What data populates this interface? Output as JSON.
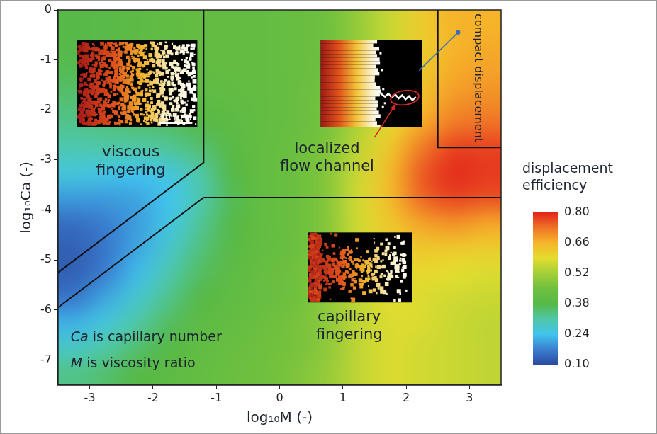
{
  "chart_data": {
    "type": "heatmap",
    "xlabel": "log₁₀M (-)",
    "ylabel": "log₁₀Ca (-)",
    "xlim": [
      -3.5,
      3.5
    ],
    "ylim": [
      -7.5,
      0
    ],
    "xticks": [
      -3,
      -2,
      -1,
      0,
      1,
      2,
      3
    ],
    "yticks": [
      0,
      -1,
      -2,
      -3,
      -4,
      -5,
      -6,
      -7
    ],
    "grid": false,
    "x": [
      -3.25,
      -2.75,
      -2.25,
      -1.75,
      -1.25,
      -0.75,
      -0.25,
      0.25,
      0.75,
      1.25,
      1.75,
      2.25,
      2.75,
      3.25
    ],
    "y": [
      -0.25,
      -0.75,
      -1.25,
      -1.75,
      -2.25,
      -2.75,
      -3.25,
      -3.75,
      -4.25,
      -4.75,
      -5.25,
      -5.75,
      -6.25,
      -6.75,
      -7.25
    ],
    "cells": [
      [
        0.38,
        0.39,
        0.4,
        0.41,
        0.42,
        0.42,
        0.42,
        0.43,
        0.45,
        0.5,
        0.56,
        0.62,
        0.66,
        0.66
      ],
      [
        0.38,
        0.39,
        0.4,
        0.41,
        0.42,
        0.42,
        0.42,
        0.43,
        0.45,
        0.5,
        0.56,
        0.62,
        0.66,
        0.67
      ],
      [
        0.37,
        0.38,
        0.39,
        0.4,
        0.41,
        0.42,
        0.42,
        0.43,
        0.45,
        0.51,
        0.57,
        0.63,
        0.67,
        0.68
      ],
      [
        0.35,
        0.36,
        0.37,
        0.38,
        0.4,
        0.41,
        0.42,
        0.43,
        0.46,
        0.52,
        0.58,
        0.64,
        0.69,
        0.7
      ],
      [
        0.33,
        0.34,
        0.35,
        0.36,
        0.38,
        0.4,
        0.42,
        0.43,
        0.46,
        0.53,
        0.6,
        0.67,
        0.72,
        0.73
      ],
      [
        0.3,
        0.31,
        0.31,
        0.32,
        0.35,
        0.39,
        0.42,
        0.44,
        0.47,
        0.55,
        0.63,
        0.72,
        0.77,
        0.77
      ],
      [
        0.26,
        0.25,
        0.24,
        0.26,
        0.31,
        0.38,
        0.42,
        0.44,
        0.48,
        0.56,
        0.65,
        0.75,
        0.79,
        0.78
      ],
      [
        0.2,
        0.2,
        0.21,
        0.24,
        0.3,
        0.37,
        0.42,
        0.44,
        0.48,
        0.57,
        0.65,
        0.74,
        0.77,
        0.76
      ],
      [
        0.15,
        0.17,
        0.2,
        0.25,
        0.32,
        0.38,
        0.42,
        0.44,
        0.48,
        0.57,
        0.63,
        0.68,
        0.7,
        0.68
      ],
      [
        0.13,
        0.16,
        0.21,
        0.27,
        0.34,
        0.39,
        0.42,
        0.44,
        0.48,
        0.56,
        0.61,
        0.63,
        0.63,
        0.62
      ],
      [
        0.13,
        0.17,
        0.23,
        0.3,
        0.36,
        0.4,
        0.43,
        0.45,
        0.49,
        0.56,
        0.6,
        0.6,
        0.59,
        0.58
      ],
      [
        0.16,
        0.21,
        0.27,
        0.33,
        0.38,
        0.41,
        0.43,
        0.45,
        0.49,
        0.55,
        0.59,
        0.58,
        0.57,
        0.56
      ],
      [
        0.22,
        0.26,
        0.31,
        0.36,
        0.4,
        0.42,
        0.44,
        0.46,
        0.49,
        0.55,
        0.58,
        0.58,
        0.56,
        0.55
      ],
      [
        0.28,
        0.31,
        0.35,
        0.38,
        0.41,
        0.43,
        0.45,
        0.46,
        0.49,
        0.55,
        0.58,
        0.57,
        0.56,
        0.55
      ],
      [
        0.33,
        0.35,
        0.38,
        0.4,
        0.42,
        0.44,
        0.45,
        0.47,
        0.5,
        0.55,
        0.58,
        0.57,
        0.56,
        0.55
      ]
    ],
    "colorbar": {
      "title": "displacement efficiency",
      "range": [
        0.1,
        0.8
      ],
      "ticks": [
        {
          "value": 0.1,
          "label": "0.10"
        },
        0.24,
        0.38,
        0.52,
        0.66,
        {
          "value": 0.8,
          "label": "0.80"
        }
      ]
    },
    "boundaries": [
      [
        [
          -3.5,
          -5.25
        ],
        [
          -1.2,
          -3.05
        ],
        [
          -1.2,
          0
        ]
      ],
      [
        [
          -3.5,
          -5.95
        ],
        [
          -1.2,
          -3.75
        ],
        [
          3.5,
          -3.75
        ]
      ],
      [
        [
          2.5,
          0
        ],
        [
          2.5,
          -2.75
        ],
        [
          3.5,
          -2.75
        ]
      ]
    ],
    "annotations": [
      "viscous fingering",
      "localized flow channel",
      "compact displacement",
      "capillary fingering",
      "Ca is capillary number",
      "M is viscosity ratio",
      "40 mm"
    ]
  }
}
